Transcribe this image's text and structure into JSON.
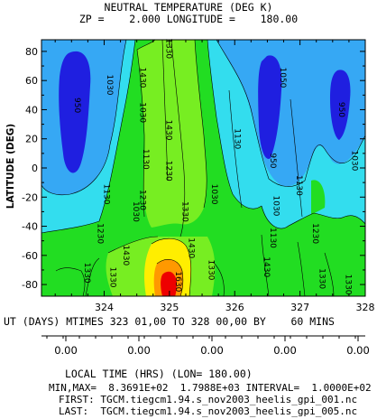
{
  "chart_data": {
    "type": "contour",
    "title": "NEUTRAL TEMPERATURE (DEG K)",
    "subtitle": "ZP =    2.000 LONGITUDE =    180.00",
    "ylabel": "LATITUDE (DEG)",
    "xlabel": "UT (DAYS) MTIMES 323 01,00 TO 328 00,00 BY    60 MINS",
    "xlim": [
      323.04,
      328.0
    ],
    "ylim": [
      -88,
      88
    ],
    "x_ticks": [
      324,
      325,
      326,
      327,
      328
    ],
    "y_ticks": [
      80,
      60,
      40,
      20,
      0,
      -20,
      -40,
      -60,
      -80
    ],
    "contour_interval": 100,
    "min": 836.91,
    "max": 1798.8,
    "colors": {
      "band_blue_dark": "#1f1fe0",
      "band_blue_light": "#36a8f4",
      "band_cyan": "#33ddee",
      "band_green": "#22dd22",
      "band_green_light": "#77ee22",
      "band_yellow": "#ffee00",
      "band_orange": "#ff9900",
      "band_red": "#ee0000"
    },
    "contour_labels": [
      {
        "x": 323.55,
        "y": 43,
        "text": "950"
      },
      {
        "x": 324.05,
        "y": 57,
        "text": "1030"
      },
      {
        "x": 324.0,
        "y": -18,
        "text": "1130"
      },
      {
        "x": 324.55,
        "y": 62,
        "text": "1430"
      },
      {
        "x": 324.55,
        "y": 38,
        "text": "1030"
      },
      {
        "x": 324.6,
        "y": 6,
        "text": "1130"
      },
      {
        "x": 324.55,
        "y": -22,
        "text": "1230"
      },
      {
        "x": 324.45,
        "y": -30,
        "text": "1030"
      },
      {
        "x": 324.95,
        "y": 82,
        "text": "1330"
      },
      {
        "x": 324.95,
        "y": 26,
        "text": "1430"
      },
      {
        "x": 324.95,
        "y": -2,
        "text": "1230"
      },
      {
        "x": 325.2,
        "y": -30,
        "text": "1330"
      },
      {
        "x": 325.65,
        "y": -18,
        "text": "1030"
      },
      {
        "x": 326.0,
        "y": 20,
        "text": "1130"
      },
      {
        "x": 326.7,
        "y": 62,
        "text": "1050"
      },
      {
        "x": 326.55,
        "y": 5,
        "text": "950"
      },
      {
        "x": 326.6,
        "y": -26,
        "text": "1030"
      },
      {
        "x": 326.55,
        "y": -48,
        "text": "1130"
      },
      {
        "x": 326.95,
        "y": -12,
        "text": "1130"
      },
      {
        "x": 327.2,
        "y": -45,
        "text": "1230"
      },
      {
        "x": 327.3,
        "y": -76,
        "text": "1330"
      },
      {
        "x": 327.6,
        "y": 40,
        "text": "950"
      },
      {
        "x": 327.8,
        "y": 5,
        "text": "1030"
      },
      {
        "x": 323.7,
        "y": -72,
        "text": "1330"
      },
      {
        "x": 324.1,
        "y": -75,
        "text": "1330"
      },
      {
        "x": 324.3,
        "y": -60,
        "text": "1430"
      },
      {
        "x": 325.1,
        "y": -78,
        "text": "1630"
      },
      {
        "x": 325.3,
        "y": -55,
        "text": "1430"
      },
      {
        "x": 325.6,
        "y": -70,
        "text": "1330"
      },
      {
        "x": 326.45,
        "y": -68,
        "text": "1430"
      },
      {
        "x": 327.7,
        "y": -80,
        "text": "1330"
      },
      {
        "x": 323.9,
        "y": -45,
        "text": "1230"
      }
    ]
  },
  "local_time": {
    "ticks": [
      "0.00",
      "0.00",
      "0.00",
      "0.00",
      "0.00"
    ],
    "label": "LOCAL TIME (HRS) (LON= 180.00)"
  },
  "footer": {
    "minmax": "MIN,MAX=  8.3691E+02  1.7988E+03 INTERVAL=  1.0000E+02",
    "first": "FIRST: TGCM.tiegcm1.94.s_nov2003_heelis_gpi_001.nc",
    "last": "LAST:  TGCM.tiegcm1.94.s_nov2003_heelis_gpi_005.nc"
  }
}
